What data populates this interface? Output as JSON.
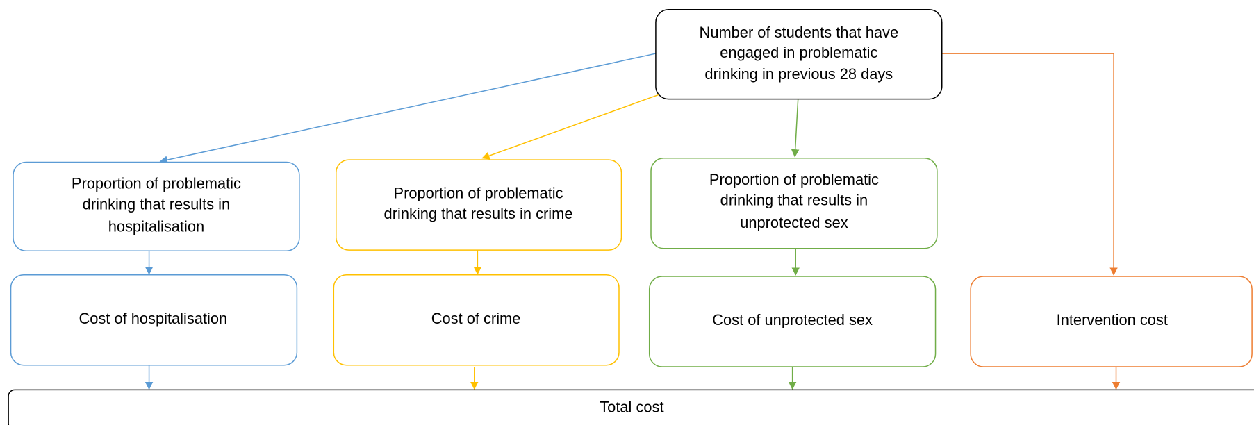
{
  "nodes": [
    {
      "lines": [
        "Number of students that have",
        "engaged in problematic",
        "drinking in previous 28 days"
      ]
    },
    {
      "lines": [
        "Proportion of problematic",
        "drinking that results in",
        "hospitalisation"
      ]
    },
    {
      "lines": [
        "Proportion of problematic",
        "drinking that results in crime"
      ]
    },
    {
      "lines": [
        "Proportion of problematic",
        "drinking that results in",
        "unprotected sex"
      ]
    },
    {
      "lines": [
        "Cost of hospitalisation"
      ]
    },
    {
      "lines": [
        "Cost of crime"
      ]
    },
    {
      "lines": [
        "Cost of unprotected sex"
      ]
    },
    {
      "lines": [
        "Intervention cost"
      ]
    },
    {
      "lines": [
        "Total cost"
      ]
    }
  ]
}
